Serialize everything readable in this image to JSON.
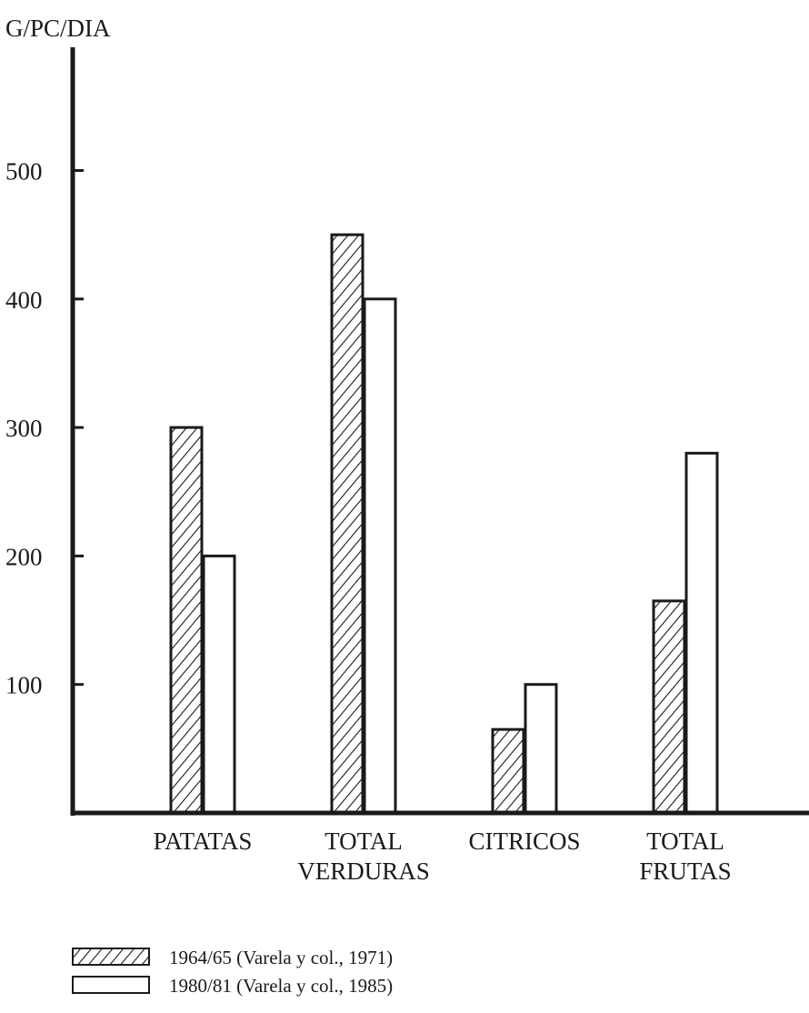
{
  "chart_data": {
    "type": "bar",
    "ylabel": "G/PC/DIA",
    "xlabel": "",
    "title": "",
    "ylim": [
      0,
      550
    ],
    "yticks": [
      100,
      200,
      300,
      400,
      500
    ],
    "grid": false,
    "legend_position": "bottom-left",
    "categories": [
      [
        "PATATAS"
      ],
      [
        "TOTAL",
        "VERDURAS"
      ],
      [
        "CITRICOS"
      ],
      [
        "TOTAL",
        "FRUTAS"
      ]
    ],
    "series": [
      {
        "name": "1964/65 (Varela y col., 1971)",
        "style": "hatched",
        "values": [
          300,
          450,
          65,
          165
        ]
      },
      {
        "name": "1980/81 (Varela y col., 1985)",
        "style": "empty",
        "values": [
          200,
          400,
          100,
          280
        ]
      }
    ]
  }
}
